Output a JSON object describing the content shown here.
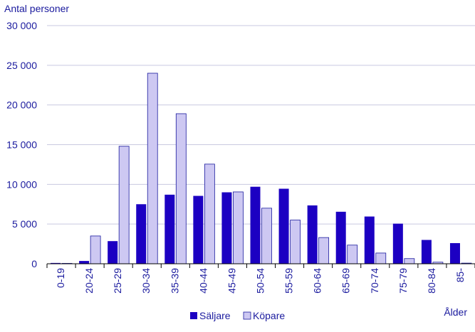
{
  "chart_data": {
    "type": "bar",
    "ylabel": "Antal personer",
    "xlabel": "Ålder",
    "ylim": [
      0,
      30000
    ],
    "yticks": [
      0,
      5000,
      10000,
      15000,
      20000,
      25000,
      30000
    ],
    "ytick_labels": [
      "0",
      "5 000",
      "10 000",
      "15 000",
      "20 000",
      "25 000",
      "30 000"
    ],
    "categories": [
      "0-19",
      "20-24",
      "25-29",
      "30-34",
      "35-39",
      "40-44",
      "45-49",
      "50-54",
      "55-59",
      "60-64",
      "65-69",
      "70-74",
      "75-79",
      "80-84",
      "85-"
    ],
    "series": [
      {
        "name": "Säljare",
        "color": "#1c00c2",
        "values": [
          100,
          350,
          2850,
          7500,
          8700,
          8550,
          9000,
          9700,
          9450,
          7350,
          6550,
          5950,
          5050,
          3000,
          2600
        ]
      },
      {
        "name": "Köpare",
        "color": "#cdc8f2",
        "values": [
          50,
          3500,
          14800,
          24000,
          18900,
          12550,
          9050,
          7000,
          5500,
          3300,
          2350,
          1350,
          650,
          200,
          80
        ]
      }
    ],
    "grid": true,
    "legend_position": "bottom-center"
  }
}
